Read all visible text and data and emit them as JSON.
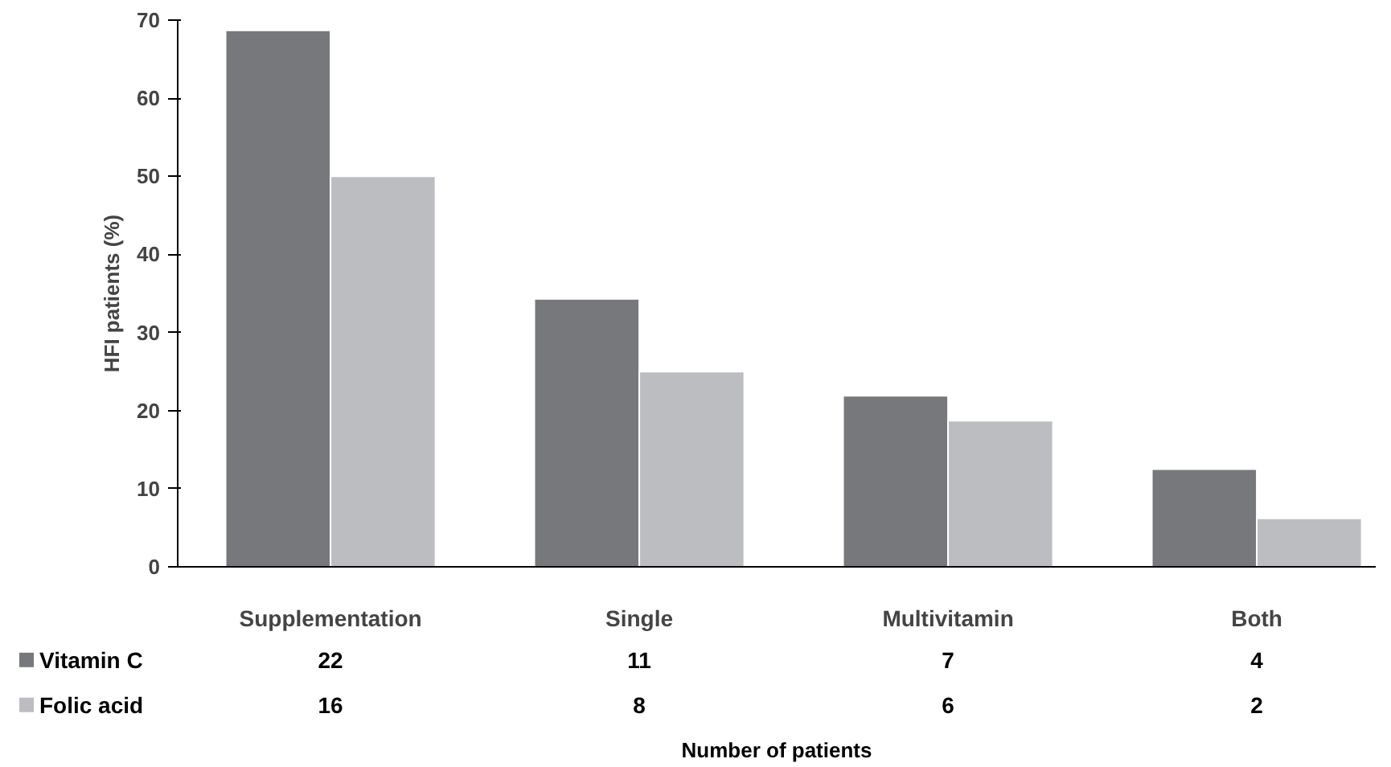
{
  "chart_data": {
    "type": "bar",
    "ylabel": "HFI patients (%)",
    "categories": [
      "Supplementation",
      "Single",
      "Multivitamin",
      "Both"
    ],
    "series": [
      {
        "name": "Vitamin C",
        "color": "#77787b",
        "values": [
          68.7,
          34.3,
          21.9,
          12.5
        ]
      },
      {
        "name": "Folic acid",
        "color": "#bcbdc0",
        "values": [
          50,
          25,
          18.7,
          6.2
        ]
      }
    ],
    "annotations": [
      "22",
      "11",
      "7",
      "4",
      "16",
      "8",
      "6",
      "2",
      "Number of patients"
    ],
    "ylim": [
      0,
      70
    ],
    "yticks": [
      0,
      10,
      20,
      30,
      40,
      50,
      60,
      70
    ],
    "grid": false,
    "legend": "bottom"
  }
}
